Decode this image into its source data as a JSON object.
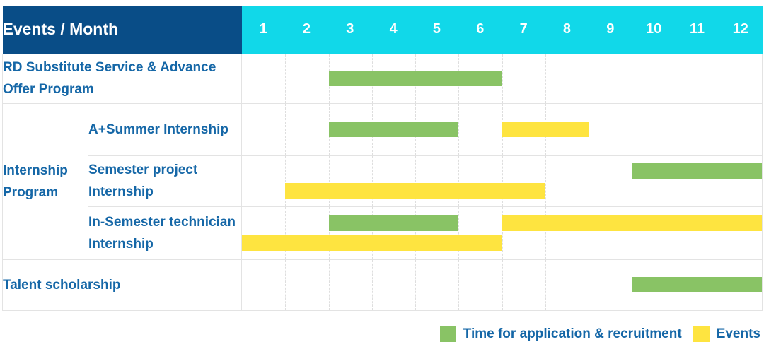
{
  "colors": {
    "navy": "#094D87",
    "cyan": "#11D8E9",
    "green": "#89C365",
    "yellow": "#FEE440",
    "label_blue": "#1567A7"
  },
  "legend": {
    "items": [
      {
        "type": "recruitment",
        "label": "Time for application & recruitment",
        "color": "#89C365"
      },
      {
        "type": "event",
        "label": "Events",
        "color": "#FEE440"
      }
    ]
  },
  "chart_data": {
    "type": "gantt",
    "title": "Events / Month",
    "xlabel": "Month",
    "months": [
      "1",
      "2",
      "3",
      "4",
      "5",
      "6",
      "7",
      "8",
      "9",
      "10",
      "11",
      "12"
    ],
    "xlim": [
      1,
      12
    ],
    "grid": "dashed-vertical-month-lines",
    "legend_position": "bottom-right",
    "bar_categories": {
      "recruitment": "Time for application & recruitment",
      "event": "Events"
    },
    "tasks": [
      {
        "name": "RD Substitute Service & Advance Offer Program",
        "group": null,
        "lanes": [
          [
            {
              "type": "recruitment",
              "start_month": 3,
              "end_month": 6
            }
          ]
        ]
      },
      {
        "name": "A+Summer Internship",
        "group": "Internship Program",
        "lanes": [
          [
            {
              "type": "recruitment",
              "start_month": 3,
              "end_month": 5
            },
            {
              "type": "event",
              "start_month": 7,
              "end_month": 8
            }
          ]
        ]
      },
      {
        "name": "Semester project Internship",
        "group": "Internship Program",
        "lanes": [
          [
            {
              "type": "recruitment",
              "start_month": 10,
              "end_month": 12
            }
          ],
          [
            {
              "type": "event",
              "start_month": 2,
              "end_month": 7
            }
          ]
        ]
      },
      {
        "name": "In-Semester technician Internship",
        "group": "Internship Program",
        "lanes": [
          [
            {
              "type": "recruitment",
              "start_month": 3,
              "end_month": 5
            },
            {
              "type": "event",
              "start_month": 7,
              "end_month": 12
            }
          ],
          [
            {
              "type": "event",
              "start_month": 1,
              "end_month": 6
            }
          ]
        ]
      },
      {
        "name": "Talent scholarship",
        "group": null,
        "lanes": [
          [
            {
              "type": "recruitment",
              "start_month": 10,
              "end_month": 12
            }
          ]
        ]
      }
    ]
  }
}
